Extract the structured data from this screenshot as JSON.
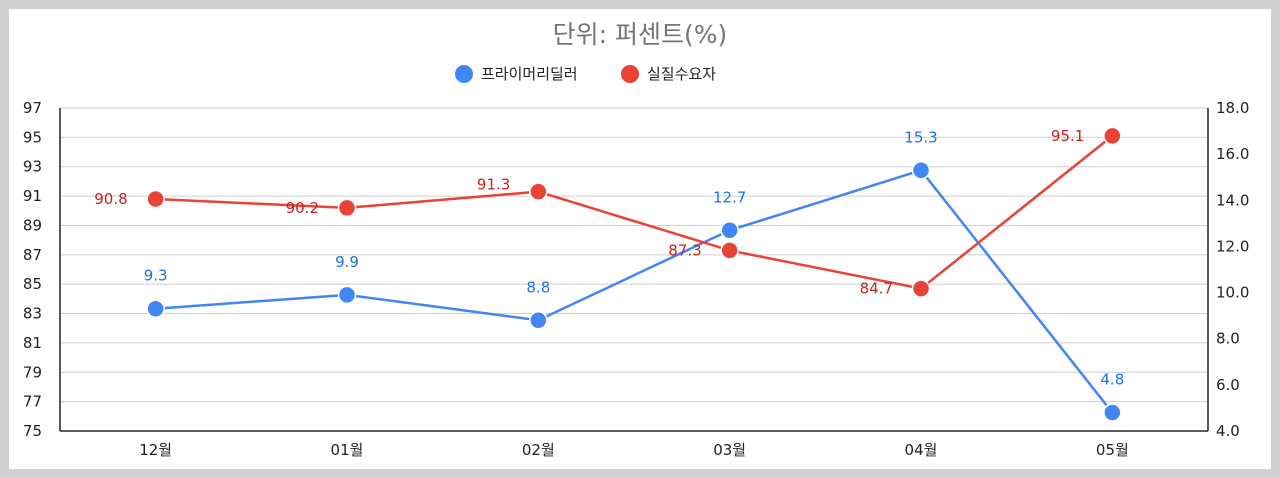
{
  "chart_data": {
    "type": "line",
    "title": "단위: 퍼센트(%)",
    "categories": [
      "12월",
      "01월",
      "02월",
      "03월",
      "04월",
      "05월"
    ],
    "series": [
      {
        "name": "프라이머리딜러",
        "axis": "right",
        "color": "#4285F4",
        "label_color": "#1a73e8",
        "values": [
          9.3,
          9.9,
          8.8,
          12.7,
          15.3,
          4.8
        ],
        "labels": [
          "9.3",
          "9.9",
          "8.8",
          "12.7",
          "15.3",
          "4.8"
        ]
      },
      {
        "name": "실질수요자",
        "axis": "left",
        "color": "#EA4335",
        "label_color": "#c5221f",
        "values": [
          90.8,
          90.2,
          91.3,
          87.3,
          84.7,
          95.1
        ],
        "labels": [
          "90.8",
          "90.2",
          "91.3",
          "87.3",
          "84.7",
          "95.1"
        ]
      }
    ],
    "y_left": {
      "ylim": [
        75,
        97
      ],
      "ticks": [
        "75",
        "77",
        "79",
        "81",
        "83",
        "85",
        "87",
        "89",
        "91",
        "93",
        "95",
        "97"
      ]
    },
    "y_right": {
      "ylim": [
        4.0,
        18.0
      ],
      "ticks": [
        "4.0",
        "6.0",
        "8.0",
        "10.0",
        "12.0",
        "14.0",
        "16.0",
        "18.0"
      ]
    },
    "grid": true,
    "legend_position": "top"
  }
}
